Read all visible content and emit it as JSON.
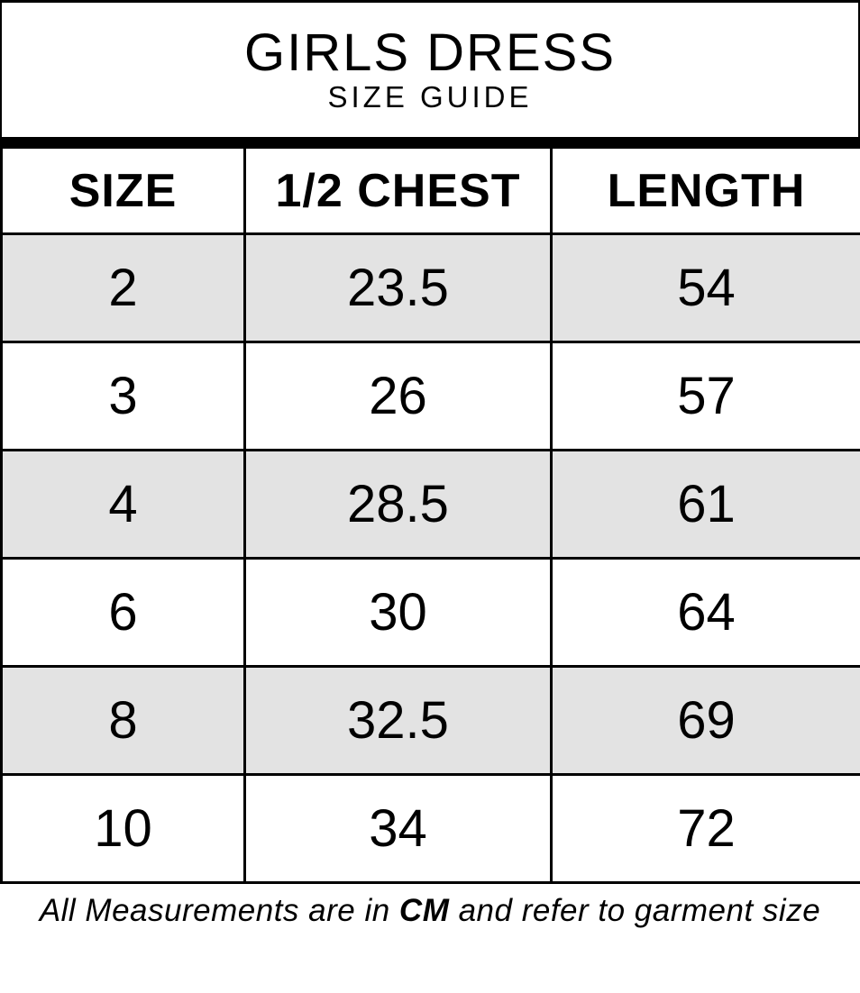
{
  "chart_data": {
    "type": "table",
    "title": "GIRLS DRESS",
    "subtitle": "SIZE GUIDE",
    "columns": [
      "SIZE",
      "1/2 CHEST",
      "LENGTH"
    ],
    "rows": [
      [
        "2",
        "23.5",
        "54"
      ],
      [
        "3",
        "26",
        "57"
      ],
      [
        "4",
        "28.5",
        "61"
      ],
      [
        "6",
        "30",
        "64"
      ],
      [
        "8",
        "32.5",
        "69"
      ],
      [
        "10",
        "34",
        "72"
      ]
    ],
    "note": {
      "prefix": "All Measurements are in ",
      "unit": "CM",
      "suffix": " and refer to garment size"
    },
    "layout": {
      "shaded_rows": "1st, 3rd, 5th data rows",
      "grid": "on"
    }
  },
  "colors": {
    "row_shaded": "#e3e3e3",
    "row_plain": "#ffffff",
    "border": "#000000",
    "text": "#000000"
  }
}
